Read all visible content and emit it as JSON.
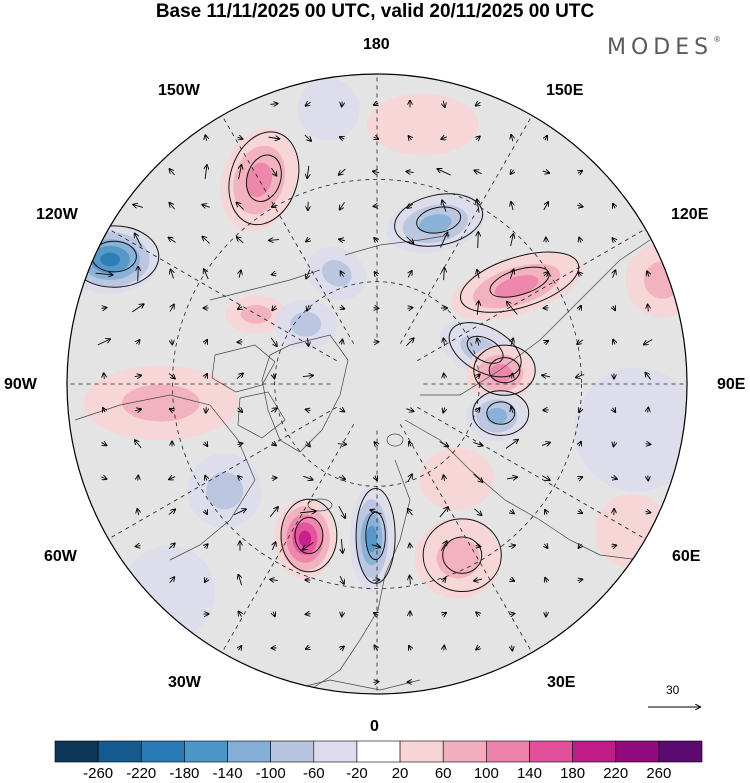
{
  "title": "Base 11/11/2025 00 UTC, valid 20/11/2025 00 UTC",
  "brand": "MODES",
  "brand_mark": "®",
  "longitude_labels": {
    "top": "180",
    "bottom": "0",
    "left": "90W",
    "right": "90E",
    "upper_left_1": "150W",
    "upper_left_2": "120W",
    "upper_right_1": "150E",
    "upper_right_2": "120E",
    "lower_left_1": "60W",
    "lower_left_2": "30W",
    "lower_right_1": "60E",
    "lower_right_2": "30E"
  },
  "wind_scale": {
    "value": "30"
  },
  "colorbar": {
    "labels": [
      "-260",
      "-220",
      "-180",
      "-140",
      "-100",
      "-60",
      "-20",
      "20",
      "60",
      "100",
      "140",
      "180",
      "220",
      "260"
    ],
    "colors": [
      "#0e3659",
      "#145a8f",
      "#2a7ab5",
      "#4f96c8",
      "#85aed6",
      "#b7c4df",
      "#dcdcec",
      "#ffffff",
      "#f7d4d5",
      "#f3aebd",
      "#ec82aa",
      "#e2509c",
      "#c21b87",
      "#8f0b7d",
      "#5c0a6f"
    ]
  },
  "anomalies": [
    {
      "lon": -150,
      "colat": 0.76,
      "value": 120,
      "sx": 0.12,
      "sy": 0.17,
      "rot": 0.3
    },
    {
      "lon": -115,
      "colat": 0.95,
      "value": -170,
      "sx": 0.16,
      "sy": 0.11,
      "rot": 0.0
    },
    {
      "lon": -160,
      "colat": 0.38,
      "value": -70,
      "sx": 0.1,
      "sy": 0.08,
      "rot": 0.5
    },
    {
      "lon": 160,
      "colat": 0.55,
      "value": -110,
      "sx": 0.16,
      "sy": 0.09,
      "rot": -0.2
    },
    {
      "lon": 125,
      "colat": 0.55,
      "value": 90,
      "sx": 0.22,
      "sy": 0.09,
      "rot": -0.3
    },
    {
      "lon": 108,
      "colat": 0.35,
      "value": -80,
      "sx": 0.14,
      "sy": 0.08,
      "rot": 0.5
    },
    {
      "lon": 95,
      "colat": 0.4,
      "value": 110,
      "sx": 0.11,
      "sy": 0.09,
      "rot": 0.0
    },
    {
      "lon": 75,
      "colat": 0.4,
      "value": -110,
      "sx": 0.1,
      "sy": 0.08,
      "rot": 0.0
    },
    {
      "lon": 80,
      "colat": 0.85,
      "value": -40,
      "sx": 0.2,
      "sy": 0.2,
      "rot": 0.0
    },
    {
      "lon": -25,
      "colat": 0.55,
      "value": 170,
      "sx": 0.1,
      "sy": 0.13,
      "rot": 0.0
    },
    {
      "lon": -2,
      "colat": 0.5,
      "value": -130,
      "sx": 0.07,
      "sy": 0.17,
      "rot": 0.0
    },
    {
      "lon": 25,
      "colat": 0.62,
      "value": 80,
      "sx": 0.14,
      "sy": 0.13,
      "rot": 0.0
    },
    {
      "lon": 40,
      "colat": 0.4,
      "value": 40,
      "sx": 0.12,
      "sy": 0.1,
      "rot": 0.0
    },
    {
      "lon": -85,
      "colat": 0.7,
      "value": 60,
      "sx": 0.25,
      "sy": 0.12,
      "rot": 0.0
    },
    {
      "lon": -55,
      "colat": 0.6,
      "value": -60,
      "sx": 0.12,
      "sy": 0.12,
      "rot": 0.0
    },
    {
      "lon": 170,
      "colat": 0.85,
      "value": 40,
      "sx": 0.18,
      "sy": 0.1,
      "rot": 0.0
    },
    {
      "lon": -170,
      "colat": 0.9,
      "value": -30,
      "sx": 0.1,
      "sy": 0.1,
      "rot": 0.0
    },
    {
      "lon": 110,
      "colat": 0.98,
      "value": 50,
      "sx": 0.12,
      "sy": 0.12,
      "rot": 0.0
    },
    {
      "lon": -45,
      "colat": 0.95,
      "value": -30,
      "sx": 0.15,
      "sy": 0.15,
      "rot": 0.0
    },
    {
      "lon": 60,
      "colat": 0.95,
      "value": 40,
      "sx": 0.12,
      "sy": 0.12,
      "rot": 0.0
    },
    {
      "lon": -120,
      "colat": 0.45,
      "value": 60,
      "sx": 0.1,
      "sy": 0.06,
      "rot": 0.0
    },
    {
      "lon": -130,
      "colat": 0.3,
      "value": -50,
      "sx": 0.1,
      "sy": 0.08,
      "rot": 0.0
    }
  ]
}
